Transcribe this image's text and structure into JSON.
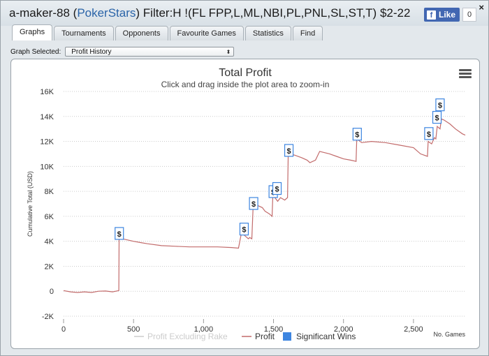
{
  "header": {
    "user": "a-maker-88",
    "site": "PokerStars",
    "filter_text": "Filter:H !(FL FPP,L,ML,NBI,PL,PNL,SL,ST,T) $2-22",
    "fb_like_label": "Like",
    "fb_like_count": "0",
    "close_label": "×"
  },
  "tabs": [
    {
      "label": "Graphs",
      "active": true
    },
    {
      "label": "Tournaments"
    },
    {
      "label": "Opponents"
    },
    {
      "label": "Favourite Games"
    },
    {
      "label": "Statistics"
    },
    {
      "label": "Find"
    }
  ],
  "graph_selector": {
    "label": "Graph Selected:",
    "value": "Profit History"
  },
  "chart_data": {
    "type": "line",
    "title": "Total Profit",
    "subtitle": "Click and drag inside the plot area to zoom-in",
    "xlabel": "No. Games",
    "ylabel": "Cumulative Total (USD)",
    "xlim": [
      0,
      2870
    ],
    "ylim": [
      -2000,
      16000
    ],
    "x_ticks": [
      0,
      500,
      1000,
      1500,
      2000,
      2500
    ],
    "x_tick_labels": [
      "0",
      "500",
      "1,000",
      "1,500",
      "2,000",
      "2,500"
    ],
    "y_ticks": [
      -2000,
      0,
      2000,
      4000,
      6000,
      8000,
      10000,
      12000,
      14000,
      16000
    ],
    "y_tick_labels": [
      "-2K",
      "0",
      "2K",
      "4K",
      "6K",
      "8K",
      "10K",
      "12K",
      "14K",
      "16K"
    ],
    "grid": true,
    "legend_position": "bottom",
    "series": [
      {
        "name": "Profit Excluding Rake",
        "color": "#cccccc",
        "hidden": true,
        "points": []
      },
      {
        "name": "Profit",
        "color": "#c26b6b",
        "points": [
          [
            0,
            50
          ],
          [
            50,
            -50
          ],
          [
            100,
            -100
          ],
          [
            150,
            -50
          ],
          [
            200,
            -100
          ],
          [
            250,
            0
          ],
          [
            300,
            20
          ],
          [
            350,
            -50
          ],
          [
            395,
            50
          ],
          [
            397,
            4300
          ],
          [
            420,
            4200
          ],
          [
            500,
            4000
          ],
          [
            550,
            3900
          ],
          [
            600,
            3800
          ],
          [
            700,
            3650
          ],
          [
            800,
            3600
          ],
          [
            900,
            3550
          ],
          [
            1000,
            3550
          ],
          [
            1100,
            3550
          ],
          [
            1200,
            3500
          ],
          [
            1250,
            3450
          ],
          [
            1270,
            4600
          ],
          [
            1290,
            4500
          ],
          [
            1320,
            4200
          ],
          [
            1330,
            4300
          ],
          [
            1345,
            4200
          ],
          [
            1355,
            7000
          ],
          [
            1380,
            6900
          ],
          [
            1420,
            6700
          ],
          [
            1440,
            6400
          ],
          [
            1470,
            6200
          ],
          [
            1490,
            6000
          ],
          [
            1495,
            7600
          ],
          [
            1510,
            7500
          ],
          [
            1530,
            7200
          ],
          [
            1550,
            7500
          ],
          [
            1580,
            7300
          ],
          [
            1600,
            7500
          ],
          [
            1605,
            11000
          ],
          [
            1650,
            10900
          ],
          [
            1700,
            10700
          ],
          [
            1740,
            10500
          ],
          [
            1760,
            10300
          ],
          [
            1800,
            10500
          ],
          [
            1830,
            11200
          ],
          [
            1900,
            11000
          ],
          [
            1950,
            10800
          ],
          [
            2000,
            10600
          ],
          [
            2050,
            10500
          ],
          [
            2090,
            10400
          ],
          [
            2095,
            12200
          ],
          [
            2130,
            11900
          ],
          [
            2200,
            12000
          ],
          [
            2300,
            11900
          ],
          [
            2400,
            11700
          ],
          [
            2500,
            11500
          ],
          [
            2550,
            11000
          ],
          [
            2600,
            10800
          ],
          [
            2605,
            12000
          ],
          [
            2630,
            11800
          ],
          [
            2650,
            12300
          ],
          [
            2660,
            12200
          ],
          [
            2670,
            13200
          ],
          [
            2690,
            13000
          ],
          [
            2700,
            13800
          ],
          [
            2720,
            13700
          ],
          [
            2760,
            13400
          ],
          [
            2800,
            13000
          ],
          [
            2850,
            12600
          ],
          [
            2870,
            12500
          ]
        ]
      }
    ],
    "significant_wins": {
      "name": "Significant Wins",
      "color": "#3d85e0",
      "symbol": "$",
      "markers": [
        {
          "x": 398,
          "y": 4600
        },
        {
          "x": 1290,
          "y": 4950
        },
        {
          "x": 1358,
          "y": 7000
        },
        {
          "x": 1498,
          "y": 7950
        },
        {
          "x": 1525,
          "y": 8200
        },
        {
          "x": 1610,
          "y": 11250
        },
        {
          "x": 2098,
          "y": 12550
        },
        {
          "x": 2610,
          "y": 12600
        },
        {
          "x": 2668,
          "y": 13900
        },
        {
          "x": 2690,
          "y": 14900
        }
      ]
    }
  }
}
